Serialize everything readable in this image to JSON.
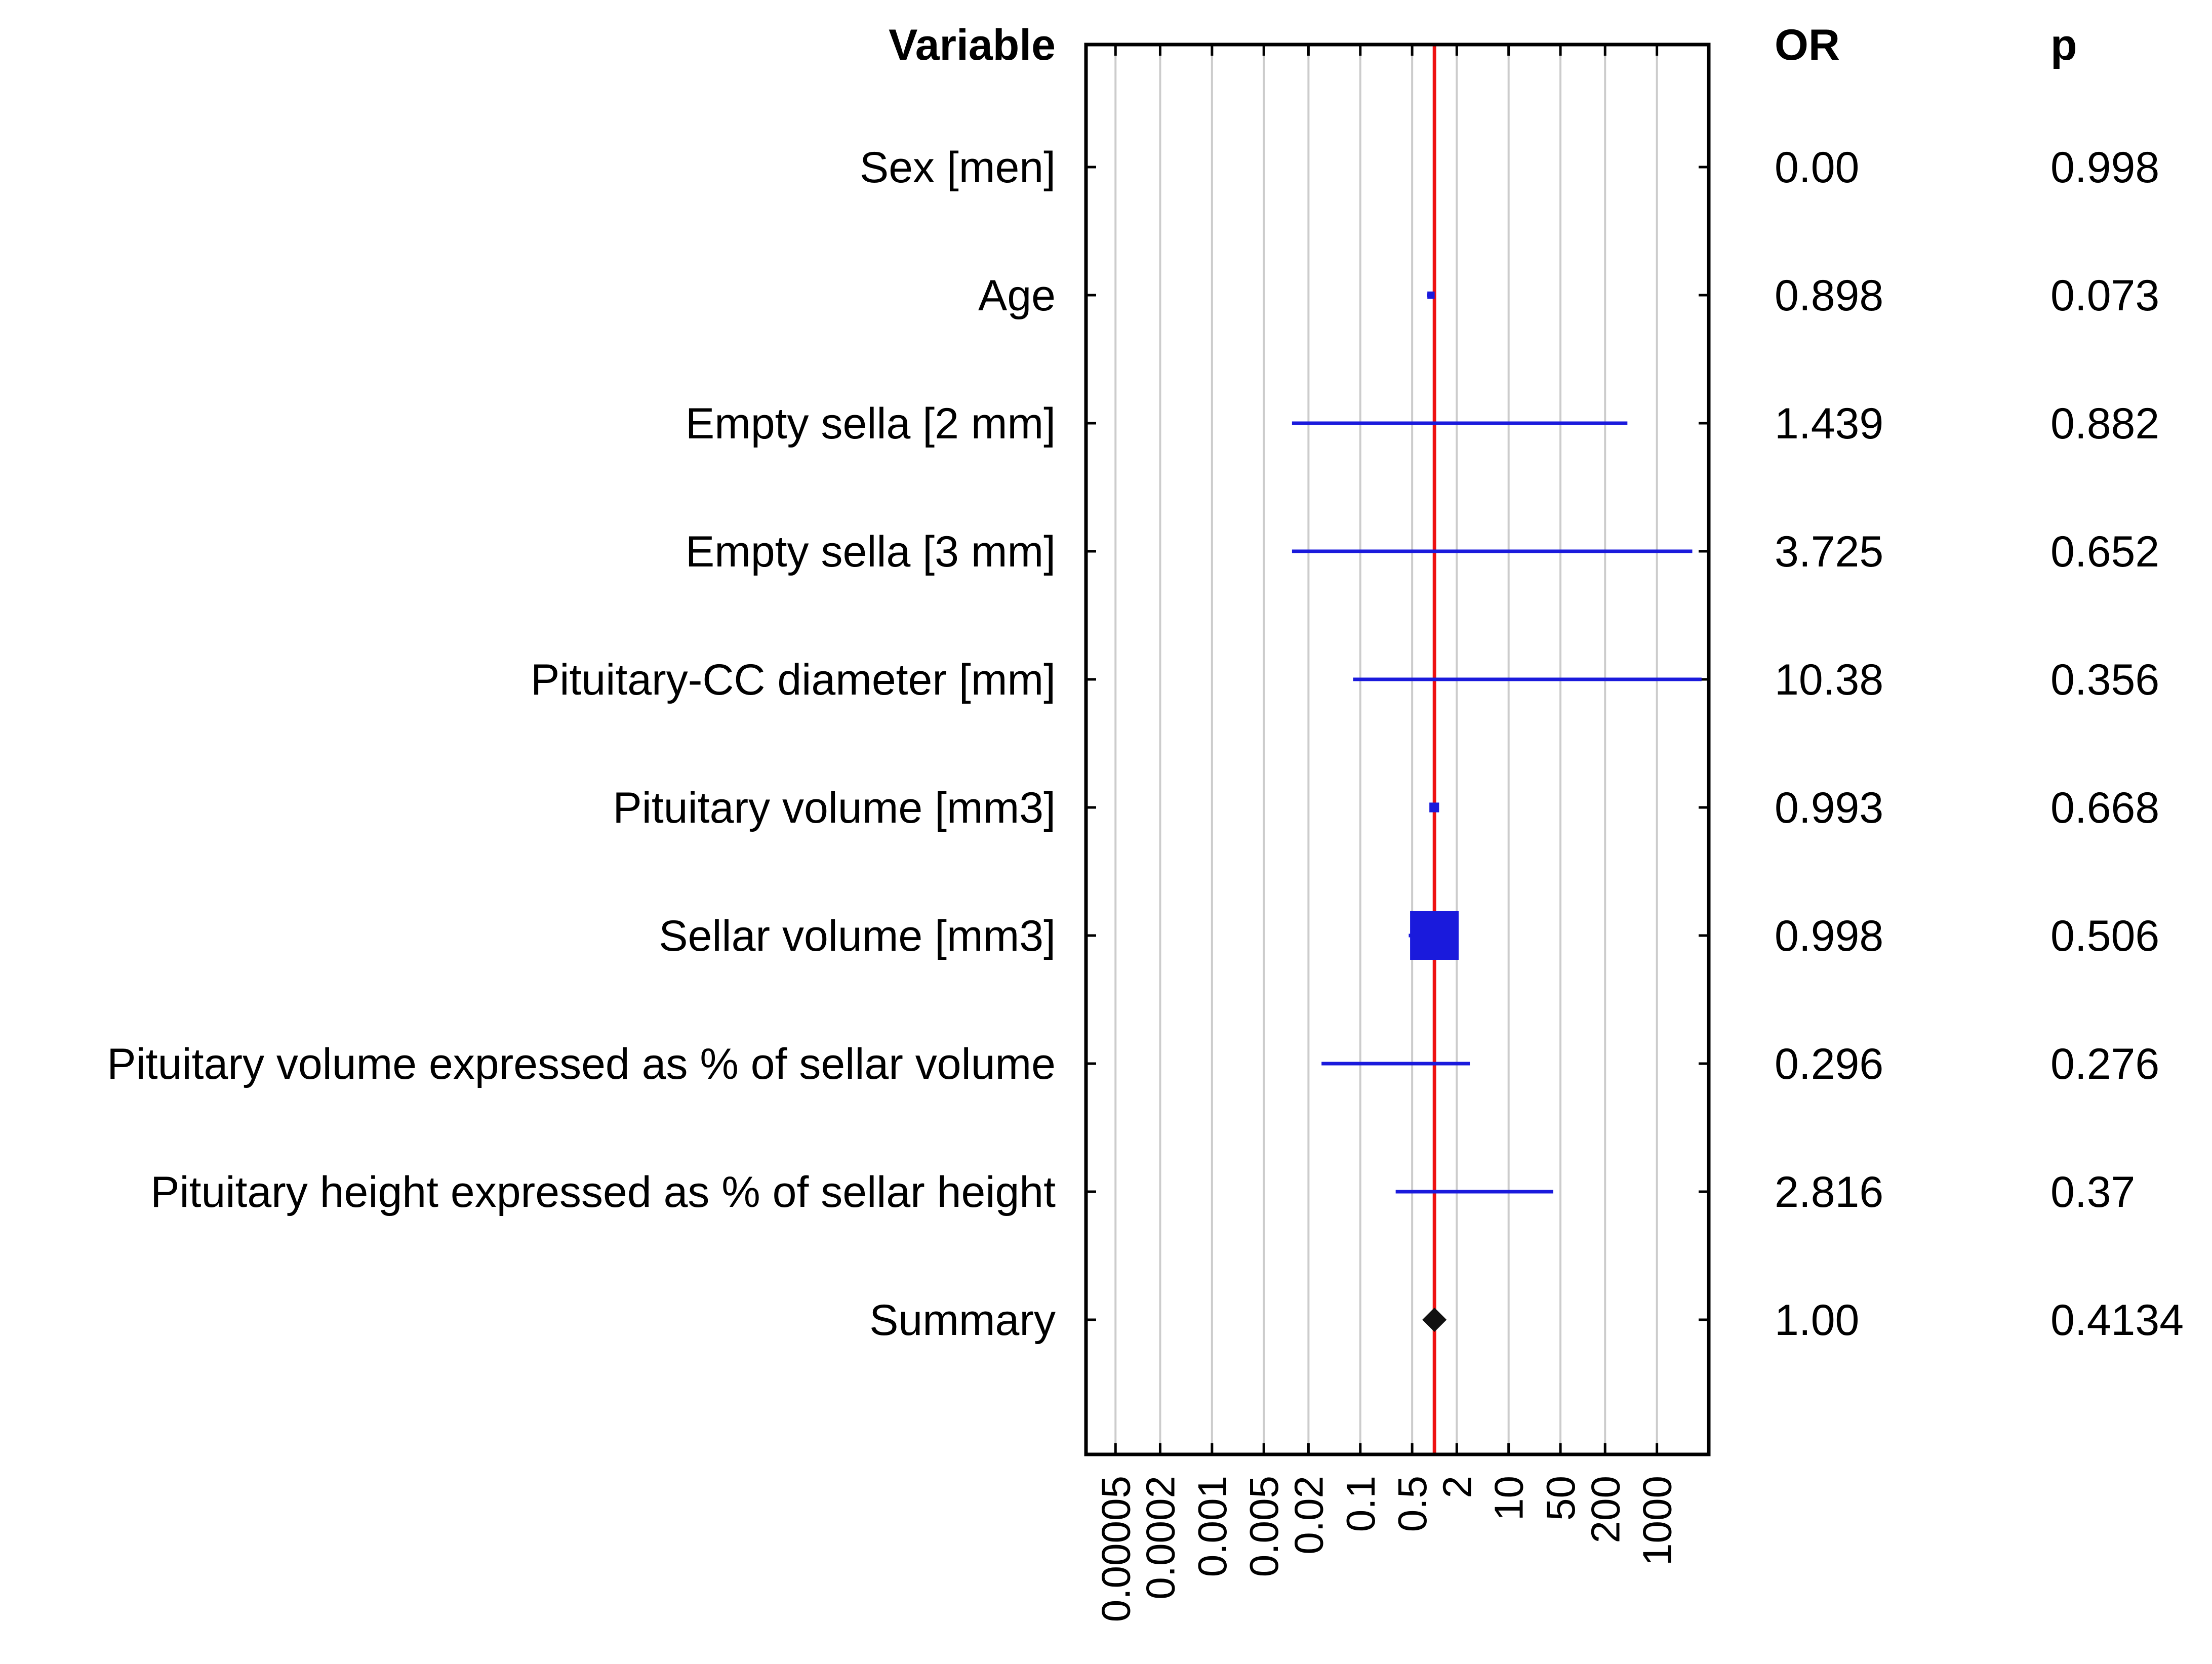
{
  "chart_data": {
    "type": "forest",
    "headers": {
      "variable": "Variable",
      "or": "OR",
      "p": "p"
    },
    "x_scale": "log",
    "xlim": [
      2e-05,
      5000
    ],
    "x_ticks": [
      5e-05,
      0.0002,
      0.001,
      0.005,
      0.02,
      0.1,
      0.5,
      2,
      10,
      50,
      200,
      1000
    ],
    "x_tick_labels": [
      "0.00005",
      "0.0002",
      "0.001",
      "0.005",
      "0.02",
      "0.1",
      "0.5",
      "2",
      "10",
      "50",
      "200",
      "1000"
    ],
    "reference_line": 1,
    "colors": {
      "ci": "#1a1adc",
      "reference": "#ee1111",
      "summary": "#111111",
      "grid": "#cccccc",
      "frame": "#000000"
    },
    "rows": [
      {
        "label": "Sex [men]",
        "or_text": "0.00",
        "p_text": "0.998",
        "or": 0,
        "ci": null,
        "weight": 0
      },
      {
        "label": "Age",
        "or_text": "0.898",
        "p_text": "0.073",
        "or": 0.898,
        "ci": [
          0.8,
          1.0
        ],
        "weight": 0.15
      },
      {
        "label": "Empty sella [2 mm]",
        "or_text": "1.439",
        "p_text": "0.882",
        "or": 1.439,
        "ci": [
          0.012,
          400
        ],
        "weight": 0
      },
      {
        "label": "Empty sella [3 mm]",
        "or_text": "3.725",
        "p_text": "0.652",
        "or": 3.725,
        "ci": [
          0.012,
          3000
        ],
        "weight": 0
      },
      {
        "label": "Pituitary-CC diameter [mm]",
        "or_text": "10.38",
        "p_text": "0.356",
        "or": 10.38,
        "ci": [
          0.08,
          4000
        ],
        "weight": 0
      },
      {
        "label": "Pituitary volume [mm3]",
        "or_text": "0.993",
        "p_text": "0.668",
        "or": 0.993,
        "ci": [
          0.9,
          1.1
        ],
        "weight": 0.2
      },
      {
        "label": "Sellar volume [mm3]",
        "or_text": "0.998",
        "p_text": "0.506",
        "or": 0.998,
        "ci": [
          0.45,
          2.0
        ],
        "weight": 1
      },
      {
        "label": "Pituitary volume expressed as % of sellar volume",
        "or_text": "0.296",
        "p_text": "0.276",
        "or": 0.296,
        "ci": [
          0.03,
          3.0
        ],
        "weight": 0
      },
      {
        "label": "Pituitary height expressed as % of sellar height",
        "or_text": "2.816",
        "p_text": "0.37",
        "or": 2.816,
        "ci": [
          0.3,
          40
        ],
        "weight": 0
      },
      {
        "label": "Summary",
        "or_text": "1.00",
        "p_text": "0.4134",
        "or": 1.0,
        "ci": null,
        "weight": 0,
        "summary": true
      }
    ]
  }
}
